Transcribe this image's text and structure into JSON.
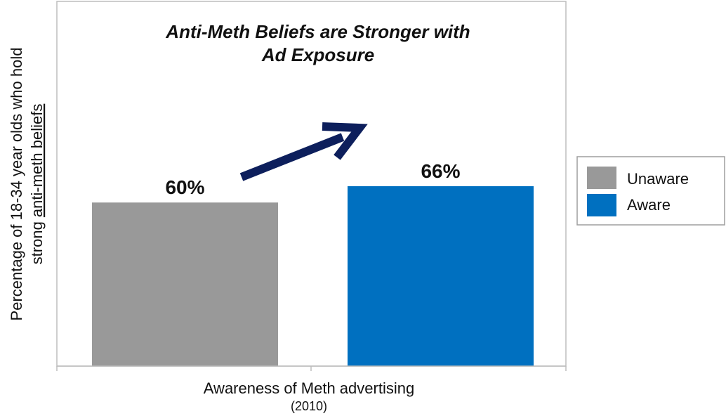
{
  "chart_data": {
    "type": "bar",
    "title_line1": "Anti-Meth Beliefs are Stronger with",
    "title_line2": "Ad Exposure",
    "ylabel_line1": "Percentage of 18-34 year olds who hold",
    "ylabel_line2_prefix": "strong ",
    "ylabel_line2_underlined": "anti-meth beliefs",
    "xlabel": "Awareness of Meth advertising",
    "xlabel_sub": "(2010)",
    "category": "Awareness of Meth advertising",
    "series": [
      {
        "name": "Unaware",
        "value": 60,
        "label": "60%",
        "color": "#999999"
      },
      {
        "name": "Aware",
        "value": 66,
        "label": "66%",
        "color": "#0070c0"
      }
    ],
    "ylim": [
      0,
      100
    ],
    "grid": false,
    "legend_position": "right",
    "arrow_color": "#0d1f5c"
  }
}
